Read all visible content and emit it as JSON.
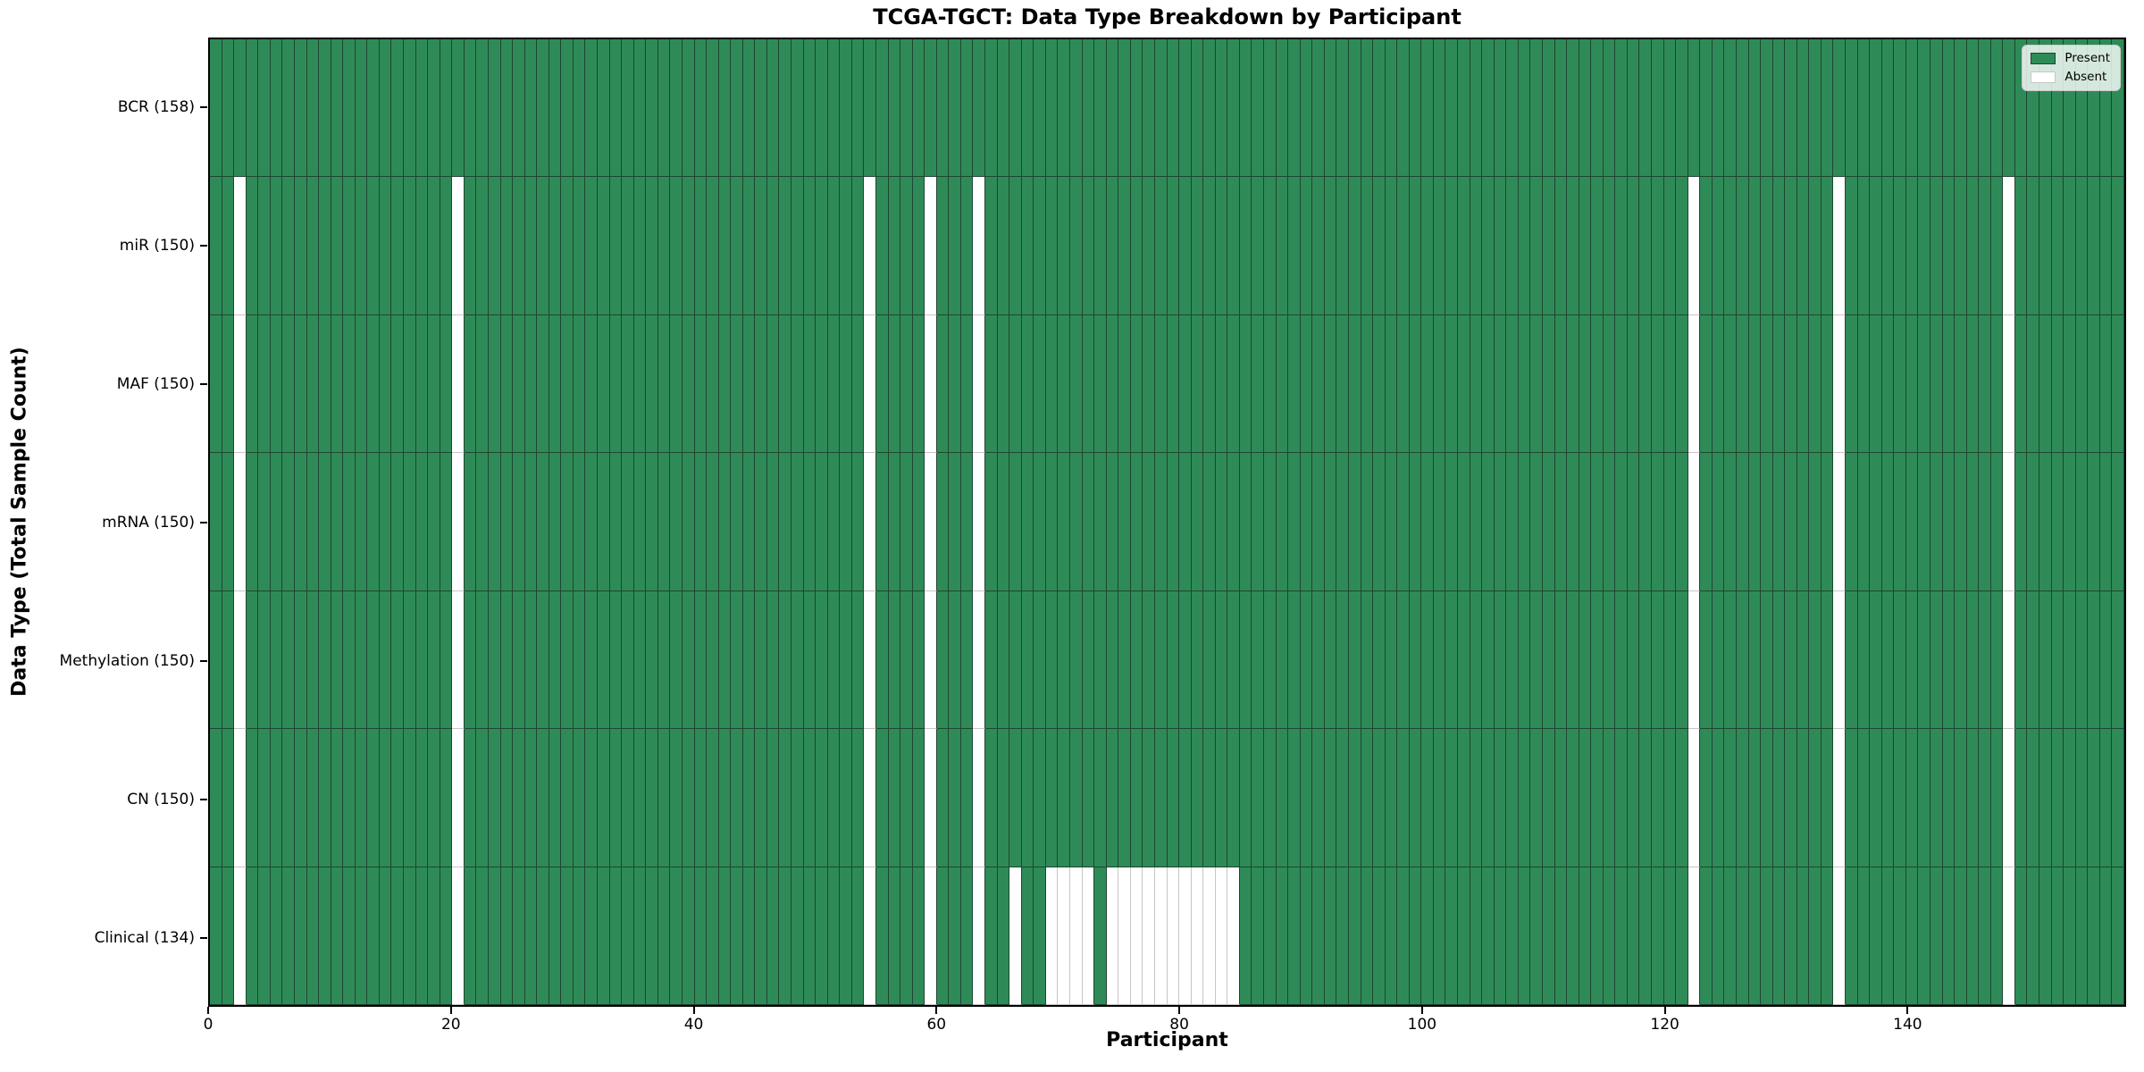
{
  "chart_data": {
    "type": "heatmap",
    "title": "TCGA-TGCT: Data Type Breakdown by Participant",
    "xlabel": "Participant",
    "ylabel": "Data Type (Total Sample Count)",
    "n_participants": 158,
    "x_range": [
      0,
      158
    ],
    "x_ticks": [
      0,
      20,
      40,
      60,
      80,
      100,
      120,
      140
    ],
    "grid": false,
    "legend_position": "upper right",
    "cell_encoding": "present = green cell, absent = white cell; one column per participant",
    "legend": [
      {
        "label": "Present",
        "color": "#2e8b57"
      },
      {
        "label": "Absent",
        "color": "#ffffff"
      }
    ],
    "rows": [
      {
        "label": "BCR (158)",
        "data_type": "BCR",
        "total": 158,
        "absent_participants": []
      },
      {
        "label": "miR (150)",
        "data_type": "miR",
        "total": 150,
        "absent_participants": [
          2,
          20,
          54,
          59,
          63,
          122,
          134,
          148
        ]
      },
      {
        "label": "MAF (150)",
        "data_type": "MAF",
        "total": 150,
        "absent_participants": [
          2,
          20,
          54,
          59,
          63,
          122,
          134,
          148
        ]
      },
      {
        "label": "mRNA (150)",
        "data_type": "mRNA",
        "total": 150,
        "absent_participants": [
          2,
          20,
          54,
          59,
          63,
          122,
          134,
          148
        ]
      },
      {
        "label": "Methylation (150)",
        "data_type": "Methylation",
        "total": 150,
        "absent_participants": [
          2,
          20,
          54,
          59,
          63,
          122,
          134,
          148
        ]
      },
      {
        "label": "CN (150)",
        "data_type": "CN",
        "total": 150,
        "absent_participants": [
          2,
          20,
          54,
          59,
          63,
          122,
          134,
          148
        ]
      },
      {
        "label": "Clinical (134)",
        "data_type": "Clinical",
        "total": 134,
        "absent_participants": [
          2,
          20,
          54,
          59,
          63,
          66,
          69,
          70,
          71,
          72,
          74,
          75,
          76,
          77,
          78,
          79,
          80,
          81,
          82,
          83,
          84,
          122,
          134,
          148
        ]
      }
    ],
    "colors": {
      "present": "#2e8b57",
      "absent": "#ffffff",
      "present_edge": "#1e4631",
      "absent_edge": "#c6c6c6",
      "spine": "#000000",
      "legend_border": "#cccccc"
    }
  }
}
